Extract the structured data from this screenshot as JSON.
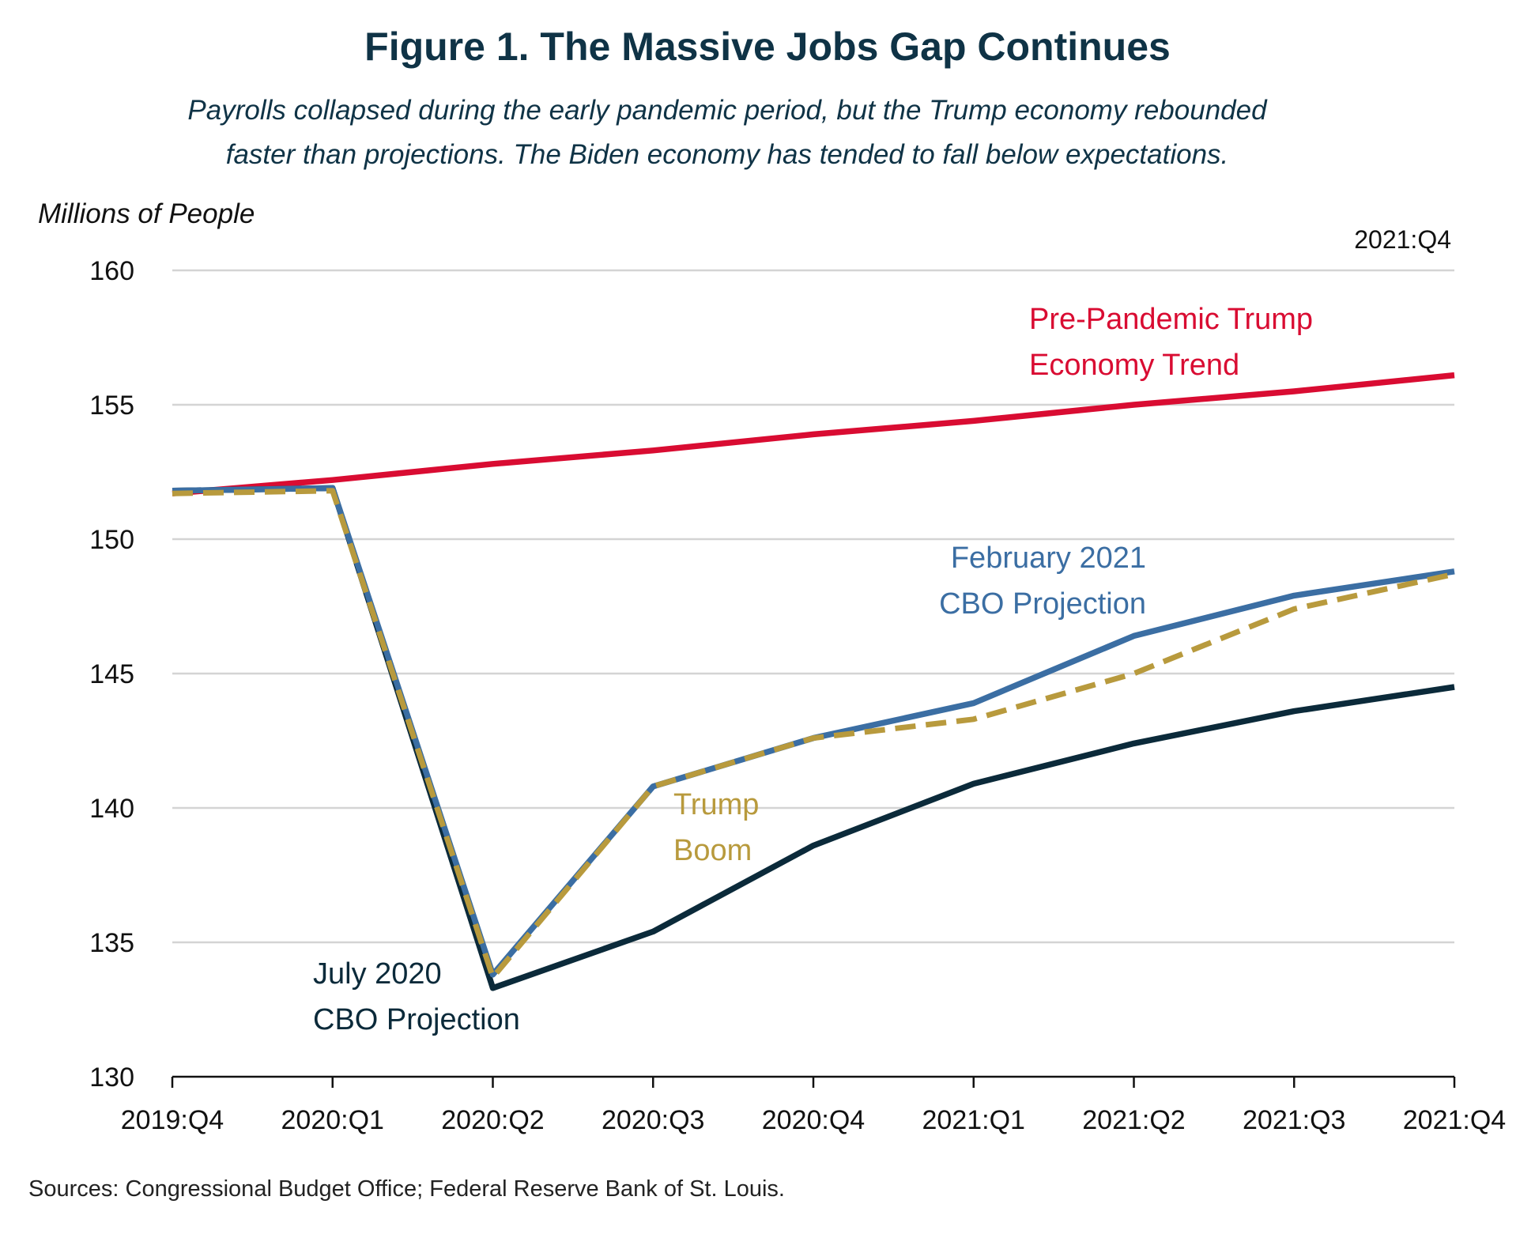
{
  "title": "Figure 1. The Massive Jobs Gap Continues",
  "subtitle_line1": "Payrolls collapsed during the early pandemic period, but the Trump economy rebounded",
  "subtitle_line2": "faster than projections. The Biden economy has tended to fall below expectations.",
  "source": "Sources: Congressional Budget Office; Federal Reserve Bank of St. Louis.",
  "chart_data": {
    "type": "line",
    "ylabel": "Millions of People",
    "corner_label": "2021:Q4",
    "ylim": [
      130,
      160
    ],
    "yticks": [
      130,
      135,
      140,
      145,
      150,
      155,
      160
    ],
    "grid": true,
    "categories": [
      "2019:Q4",
      "2020:Q1",
      "2020:Q2",
      "2020:Q3",
      "2020:Q4",
      "2021:Q1",
      "2021:Q2",
      "2021:Q3",
      "2021:Q4"
    ],
    "series": [
      {
        "name": "Pre-Pandemic Trump Economy Trend",
        "label_lines": [
          "Pre-Pandemic Trump",
          "Economy Trend"
        ],
        "color": "#d90c32",
        "dashed": false,
        "values": [
          151.7,
          152.2,
          152.8,
          153.3,
          153.9,
          154.4,
          155.0,
          155.5,
          156.1
        ]
      },
      {
        "name": "February 2021 CBO Projection",
        "label_lines": [
          "February 2021",
          "CBO Projection"
        ],
        "color": "#3b6ea3",
        "dashed": false,
        "values": [
          151.8,
          151.9,
          133.8,
          140.8,
          142.6,
          143.9,
          146.4,
          147.9,
          148.8
        ]
      },
      {
        "name": "July 2020 CBO Projection",
        "label_lines": [
          "July 2020",
          "CBO Projection"
        ],
        "color": "#0b2a3a",
        "dashed": false,
        "values": [
          151.8,
          151.9,
          133.3,
          135.4,
          138.6,
          140.9,
          142.4,
          143.6,
          144.5
        ]
      },
      {
        "name": "Trump Boom",
        "label_lines": [
          "Trump",
          "Boom"
        ],
        "color": "#b89a3d",
        "dashed": true,
        "values": [
          151.7,
          151.8,
          133.7,
          140.8,
          142.6,
          143.3,
          145.0,
          147.4,
          148.7
        ]
      }
    ]
  }
}
